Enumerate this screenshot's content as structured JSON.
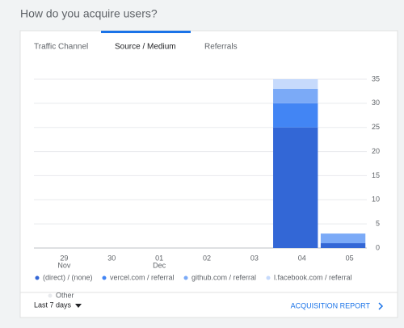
{
  "header": {
    "title": "How do you acquire users?"
  },
  "tabs": [
    {
      "label": "Traffic Channel"
    },
    {
      "label": "Source / Medium",
      "active": true
    },
    {
      "label": "Referrals"
    }
  ],
  "chart_data": {
    "type": "stacked_bar",
    "categories": [
      "29",
      "30",
      "01",
      "02",
      "03",
      "04",
      "05"
    ],
    "x_sublabels": [
      "Nov",
      null,
      "Dec",
      null,
      null,
      null,
      null
    ],
    "series": [
      {
        "name": "(direct) / (none)",
        "color": "#3367d6",
        "values": [
          0,
          0,
          0,
          0,
          0,
          25,
          1
        ]
      },
      {
        "name": "vercel.com / referral",
        "color": "#4285f4",
        "values": [
          0,
          0,
          0,
          0,
          0,
          5,
          0
        ]
      },
      {
        "name": "github.com / referral",
        "color": "#7baaf7",
        "values": [
          0,
          0,
          0,
          0,
          0,
          3,
          2
        ]
      },
      {
        "name": "l.facebook.com / referral",
        "color": "#c6dafc",
        "values": [
          0,
          0,
          0,
          0,
          0,
          2,
          0
        ]
      },
      {
        "name": "Other",
        "color": "#e8eaed",
        "values": [
          0,
          0,
          0,
          0,
          0,
          0,
          0
        ]
      }
    ],
    "ylim": [
      0,
      35
    ],
    "yticks": [
      0,
      5,
      10,
      15,
      20,
      25,
      30,
      35
    ],
    "grid": true
  },
  "footer": {
    "range": "Last 7 days",
    "link": "ACQUISITION REPORT"
  }
}
